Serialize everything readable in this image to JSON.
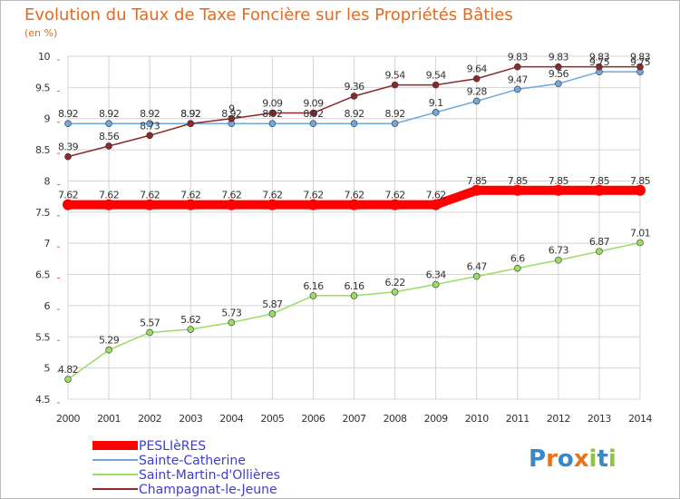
{
  "chart_data": {
    "type": "line",
    "title": "Evolution du Taux de Taxe Foncière sur les Propriétés Bâties",
    "ylabel": "(en %)",
    "xlabel": "",
    "ylim": [
      4.5,
      10
    ],
    "yticks": [
      "4.5",
      "5",
      "5.5",
      "6",
      "6.5",
      "7",
      "7.5",
      "8",
      "8.5",
      "9",
      "9.5",
      "10"
    ],
    "categories": [
      "2000",
      "2001",
      "2002",
      "2003",
      "2004",
      "2005",
      "2006",
      "2007",
      "2008",
      "2009",
      "2010",
      "2011",
      "2012",
      "2013",
      "2014"
    ],
    "grid": true,
    "legend_position": "bottom-left",
    "series": [
      {
        "name": "PESLIèRES",
        "color": "#ff0000",
        "values": [
          7.62,
          7.62,
          7.62,
          7.62,
          7.62,
          7.62,
          7.62,
          7.62,
          7.62,
          7.62,
          7.85,
          7.85,
          7.85,
          7.85,
          7.85
        ],
        "labels": [
          "7.62",
          "7.62",
          "7.62",
          "7.62",
          "7.62",
          "7.62",
          "7.62",
          "7.62",
          "7.62",
          "7.62",
          "7.85",
          "7.85",
          "7.85",
          "7.85",
          "7.85"
        ]
      },
      {
        "name": "Sainte-Catherine",
        "color": "#6fa8dc",
        "values": [
          8.92,
          8.92,
          8.92,
          8.92,
          8.92,
          8.92,
          8.92,
          8.92,
          8.92,
          9.1,
          9.28,
          9.47,
          9.56,
          9.75,
          9.75
        ],
        "labels": [
          "8.92",
          "8.92",
          "8.92",
          "8.92",
          "8.92",
          "8.92",
          "8.92",
          "8.92",
          "8.92",
          "9.1",
          "9.28",
          "9.47",
          "9.56",
          "9.75",
          "9.75"
        ]
      },
      {
        "name": "Saint-Martin-d'Ollières",
        "color": "#99dd66",
        "values": [
          4.82,
          5.29,
          5.57,
          5.62,
          5.73,
          5.87,
          6.16,
          6.16,
          6.22,
          6.34,
          6.47,
          6.6,
          6.73,
          6.87,
          7.01
        ],
        "labels": [
          "4.82",
          "5.29",
          "5.57",
          "5.62",
          "5.73",
          "5.87",
          "6.16",
          "6.16",
          "6.22",
          "6.34",
          "6.47",
          "6.6",
          "6.73",
          "6.87",
          "7.01"
        ]
      },
      {
        "name": "Champagnat-le-Jeune",
        "color": "#8b2a2a",
        "values": [
          8.39,
          8.56,
          8.73,
          8.92,
          9,
          9.09,
          9.09,
          9.36,
          9.54,
          9.54,
          9.64,
          9.83,
          9.83,
          9.83,
          9.83
        ],
        "labels": [
          "8.39",
          "8.56",
          "8.73",
          "8.92",
          "9",
          "9.09",
          "9.09",
          "9.36",
          "9.54",
          "9.54",
          "9.64",
          "9.83",
          "9.83",
          "9.83",
          "9.83"
        ]
      }
    ]
  },
  "brand": {
    "logo_text": "Proxiti"
  }
}
